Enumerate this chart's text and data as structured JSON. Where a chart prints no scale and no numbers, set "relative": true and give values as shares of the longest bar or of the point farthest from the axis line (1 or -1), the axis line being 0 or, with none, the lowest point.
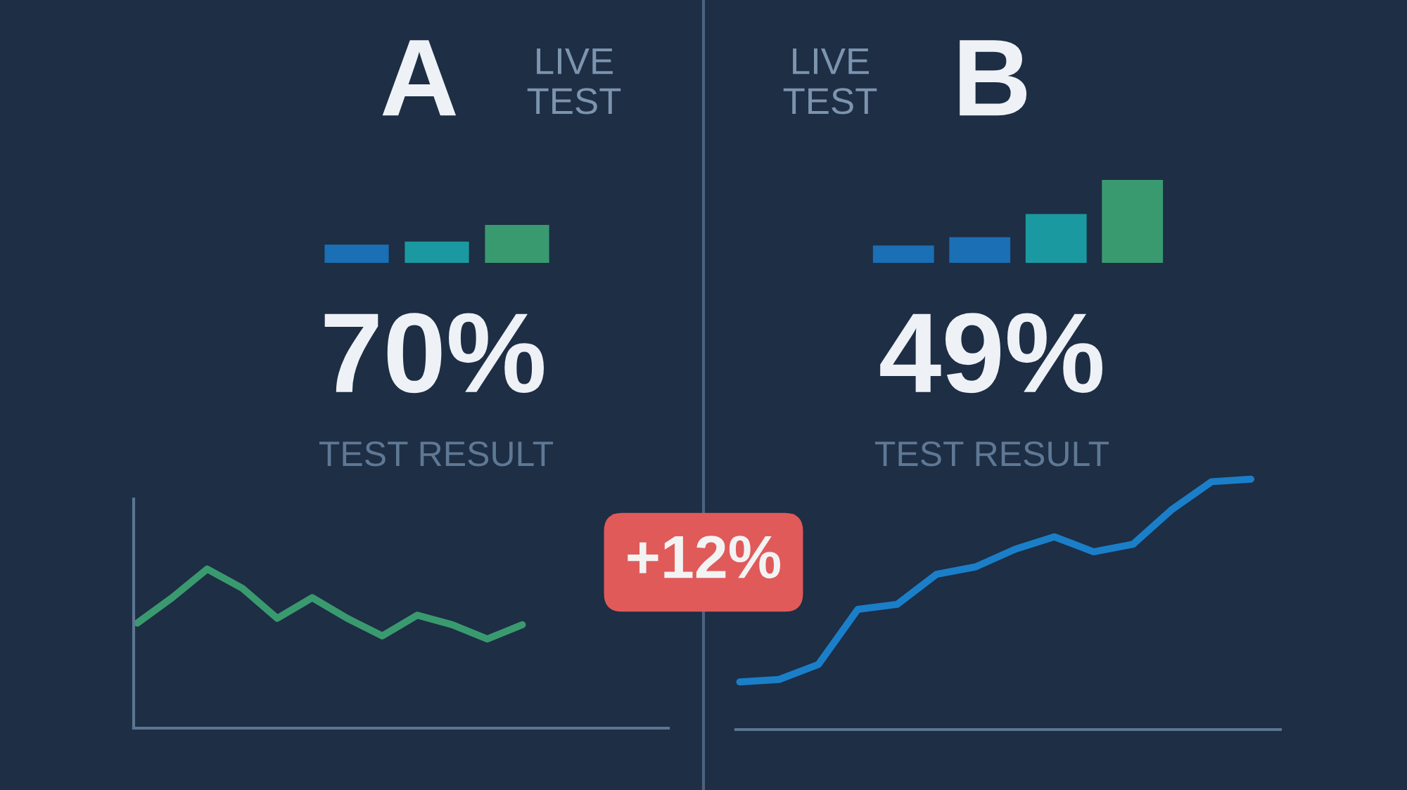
{
  "chart_data": [
    {
      "type": "other",
      "title": "A",
      "subtitle": "LIVE TEST",
      "annotations": [
        "70%",
        "TEST RESULT"
      ]
    },
    {
      "type": "bar",
      "relative": true,
      "categories": [
        null,
        null,
        null
      ],
      "values": [
        0.48,
        0.56,
        1
      ],
      "colors": [
        "#1a6fb5",
        "#1a9aa0",
        "#3a9a6f"
      ]
    },
    {
      "type": "other",
      "title": "B",
      "subtitle": "LIVE TEST",
      "annotations": [
        "49%",
        "TEST RESULT"
      ]
    },
    {
      "type": "bar",
      "relative": true,
      "categories": [
        null,
        null,
        null,
        null
      ],
      "values": [
        0.21,
        0.31,
        0.59,
        1
      ],
      "colors": [
        "#1a6fb5",
        "#1a6fb5",
        "#1a9aa0",
        "#3a9a6f"
      ]
    },
    {
      "type": "line",
      "relative": true,
      "categories": [
        null,
        null,
        null,
        null,
        null,
        null,
        null,
        null,
        null,
        null,
        null,
        null
      ],
      "series": [
        {
          "color": "#3a9a6f",
          "values": [
            0.66,
            0.82,
            1,
            0.88,
            0.69,
            0.82,
            0.69,
            0.58,
            0.71,
            0.65,
            0.56,
            0.65
          ]
        }
      ]
    },
    {
      "type": "line",
      "relative": true,
      "categories": [
        null,
        null,
        null,
        null,
        null,
        null,
        null,
        null,
        null,
        null,
        null,
        null,
        null,
        null
      ],
      "series": [
        {
          "color": "#1a7fc8",
          "values": [
            0.19,
            0.2,
            0.26,
            0.48,
            0.5,
            0.62,
            0.65,
            0.72,
            0.77,
            0.71,
            0.74,
            0.88,
            0.99,
            1
          ]
        }
      ]
    },
    {
      "type": "other",
      "annotations": [
        "+12%"
      ]
    }
  ]
}
